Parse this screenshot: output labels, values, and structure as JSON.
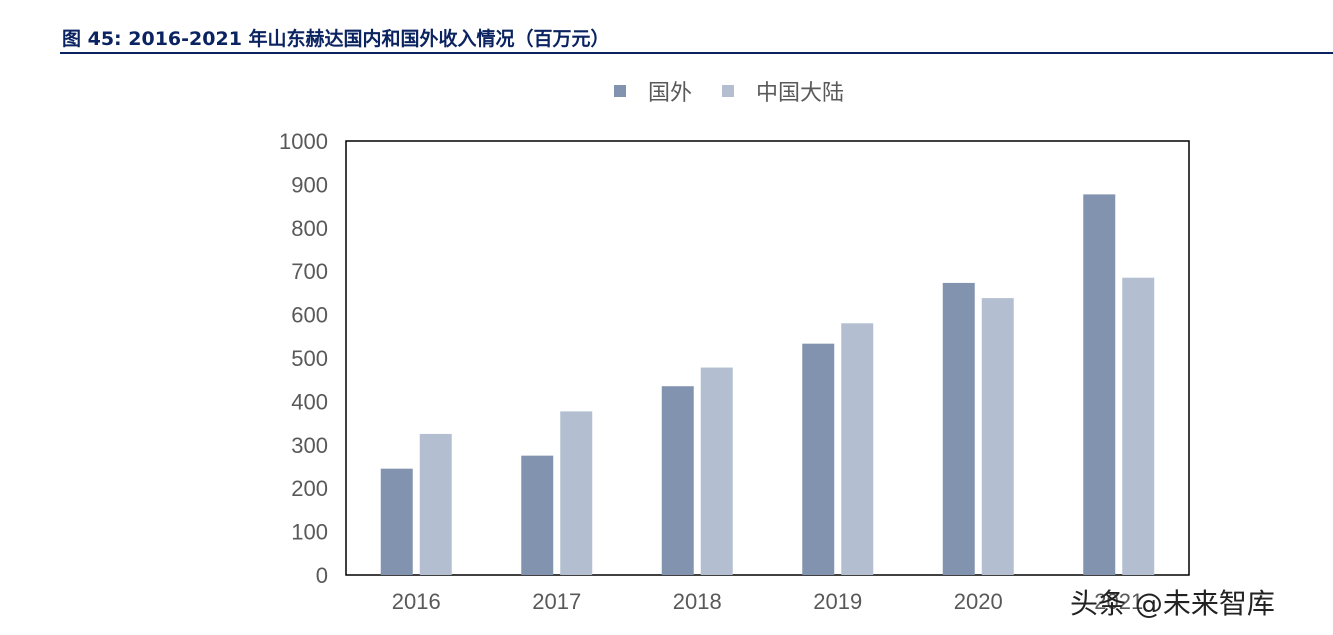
{
  "figure": {
    "title": "图 45: 2016-2021 年山东赫达国内和国外收入情况（百万元）"
  },
  "watermark": "头条 @未来智库",
  "chart_data": {
    "type": "bar",
    "title": "",
    "xlabel": "",
    "ylabel": "",
    "categories": [
      "2016",
      "2017",
      "2018",
      "2019",
      "2020",
      "2021"
    ],
    "series": [
      {
        "name": "国外",
        "color": "#8293b0",
        "values": [
          245,
          275,
          435,
          533,
          673,
          877
        ]
      },
      {
        "name": "中国大陆",
        "color": "#b3bfd1",
        "values": [
          325,
          377,
          478,
          580,
          638,
          685
        ]
      }
    ],
    "ylim": [
      0,
      1000
    ],
    "yticks": [
      0,
      100,
      200,
      300,
      400,
      500,
      600,
      700,
      800,
      900,
      1000
    ],
    "grid": false,
    "legend_position": "top-center"
  }
}
